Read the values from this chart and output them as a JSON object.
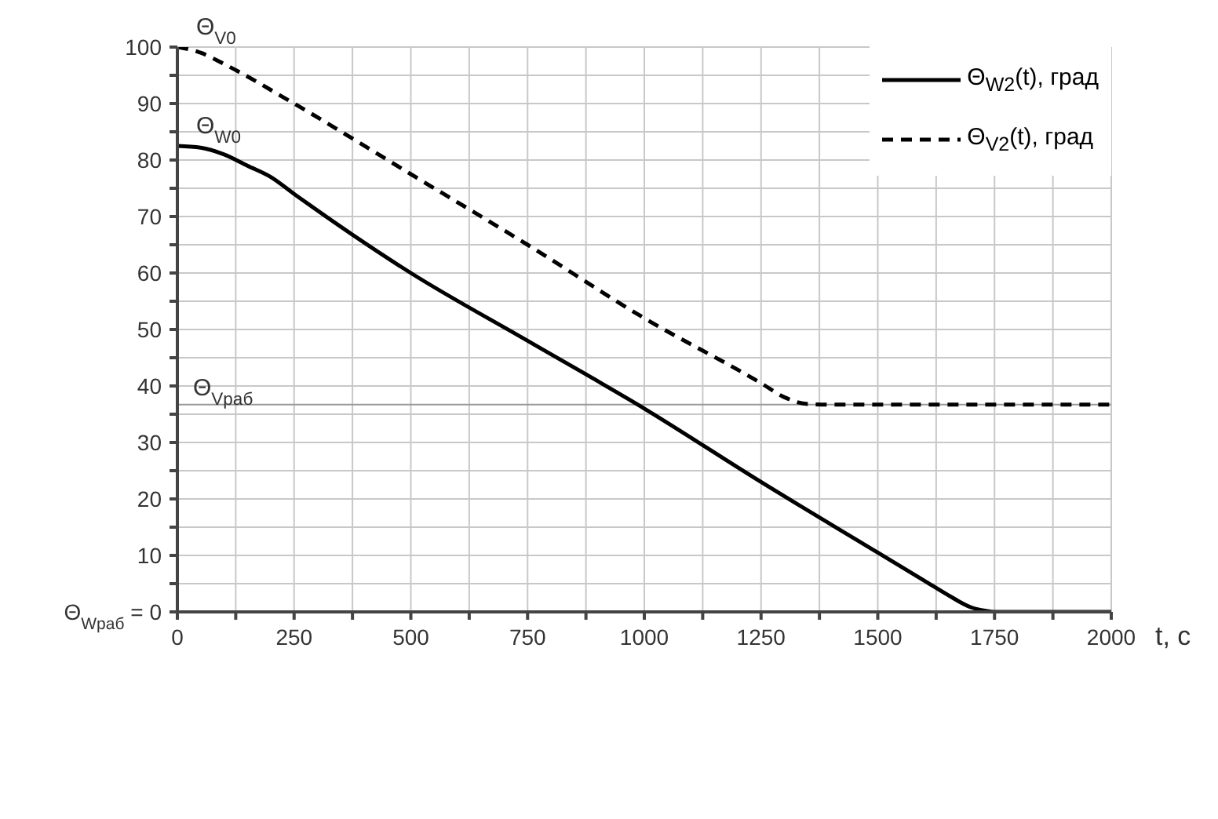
{
  "chart_data": {
    "type": "line",
    "xlabel": "t, c",
    "legend": "top right",
    "grid": true,
    "xlim": [
      0,
      2000
    ],
    "ylim": [
      0,
      100
    ],
    "xticks": [
      0,
      {
        "value": 125,
        "label": null
      },
      250,
      {
        "value": 375,
        "label": null
      },
      500,
      {
        "value": 625,
        "label": null
      },
      750,
      {
        "value": 875,
        "label": null
      },
      1000,
      {
        "value": 1125,
        "label": null
      },
      1250,
      {
        "value": 1375,
        "label": null
      },
      1500,
      {
        "value": 1625,
        "label": null
      },
      1750,
      {
        "value": 1875,
        "label": null
      },
      2000
    ],
    "yticks": [
      {
        "value": 0,
        "label": "Θ$_{Wраб}$ = 0"
      },
      {
        "value": 5,
        "label": null
      },
      10,
      {
        "value": 15,
        "label": null
      },
      20,
      {
        "value": 25,
        "label": null
      },
      30,
      {
        "value": 35,
        "label": null
      },
      40,
      {
        "value": 45,
        "label": null
      },
      50,
      {
        "value": 55,
        "label": null
      },
      60,
      {
        "value": 65,
        "label": null
      },
      70,
      {
        "value": 75,
        "label": null
      },
      80,
      {
        "value": 85,
        "label": null
      },
      90,
      {
        "value": 95,
        "label": null
      },
      100
    ],
    "series": [
      {
        "name": "Θ$_{W2}$(t), град",
        "color": "#000000",
        "line_style": "solid",
        "x": [
          0,
          50,
          100,
          150,
          200,
          250,
          500,
          750,
          1000,
          1250,
          1500,
          1600,
          1650,
          1700,
          1730,
          1750,
          2000
        ],
        "values": [
          82.5,
          82.2,
          81,
          79,
          77,
          74,
          60,
          48,
          36,
          23,
          10.5,
          5.5,
          3,
          0.8,
          0.2,
          0,
          0
        ]
      },
      {
        "name": "Θ$_{V2}$(t), град",
        "color": "#000000",
        "line_style": "dashed",
        "x": [
          0,
          50,
          100,
          250,
          500,
          750,
          1000,
          1250,
          1300,
          1350,
          1400,
          2000
        ],
        "values": [
          100,
          99,
          97,
          90,
          77.5,
          65,
          52,
          40.5,
          38,
          36.8,
          36.7,
          36.7
        ]
      }
    ],
    "ref_lines": [
      {
        "axis": "y",
        "value": 36.7,
        "label": "Θ$_{Vраб}$",
        "color": "#999999"
      }
    ],
    "annotations": [
      {
        "text": "Θ$_{V0}$",
        "x": 0,
        "y": 100
      },
      {
        "text": "Θ$_{W0}$",
        "x": 0,
        "y": 82.5
      }
    ]
  }
}
